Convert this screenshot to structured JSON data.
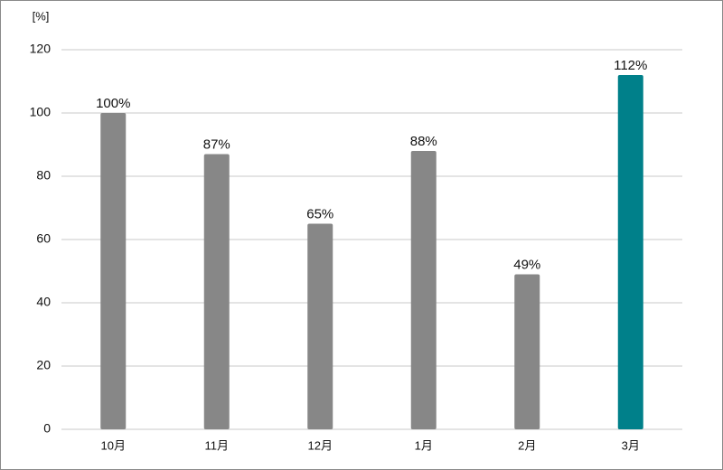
{
  "chart_data": {
    "type": "bar",
    "y_axis_label": "[%]",
    "categories": [
      "10月",
      "11月",
      "12月",
      "1月",
      "2月",
      "3月"
    ],
    "values": [
      100,
      87,
      65,
      88,
      49,
      112
    ],
    "value_labels": [
      "100%",
      "87%",
      "65%",
      "88%",
      "49%",
      "112%"
    ],
    "colors": [
      "#878787",
      "#878787",
      "#878787",
      "#878787",
      "#878787",
      "#00808a"
    ],
    "ylim": [
      0,
      120
    ],
    "yticks": [
      0,
      20,
      40,
      60,
      80,
      100,
      120
    ],
    "grid": true
  }
}
